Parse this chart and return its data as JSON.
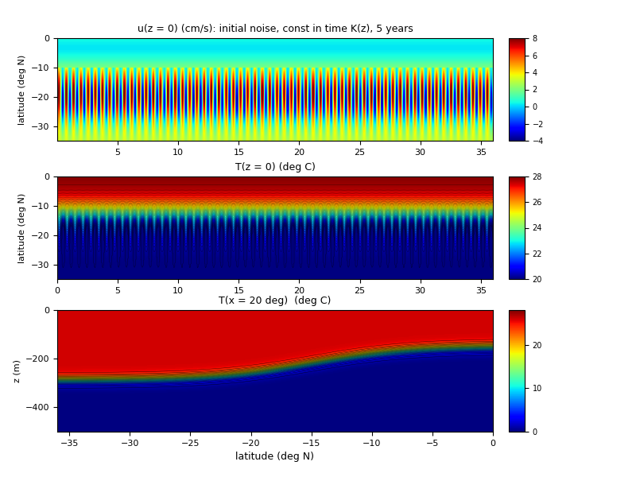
{
  "panel1": {
    "title": "u(z = 0) (cm/s): initial noise, const in time K(z), 5 years",
    "xlabel": "",
    "ylabel": "latitude (deg N)",
    "xlim": [
      0,
      36
    ],
    "ylim": [
      -35,
      0
    ],
    "xticks": [
      5,
      10,
      15,
      20,
      25,
      30,
      35
    ],
    "yticks": [
      0,
      -10,
      -20,
      -30
    ],
    "clim": [
      -4,
      8
    ],
    "cticks": [
      -4,
      -2,
      0,
      2,
      4,
      6,
      8
    ]
  },
  "panel2": {
    "title": "T(z = 0) (deg C)",
    "xlabel": "",
    "ylabel": "latitude (deg N)",
    "xlim": [
      0,
      36
    ],
    "ylim": [
      -35,
      0
    ],
    "xticks": [
      0,
      5,
      10,
      15,
      20,
      25,
      30,
      35
    ],
    "yticks": [
      0,
      -10,
      -20,
      -30
    ],
    "clim": [
      20,
      28
    ],
    "cticks": [
      20,
      22,
      24,
      26,
      28
    ]
  },
  "panel3": {
    "title": "T(x = 20 deg)  (deg C)",
    "xlabel": "latitude (deg N)",
    "ylabel": "z (m)",
    "xlim": [
      -36,
      0
    ],
    "ylim": [
      -500,
      0
    ],
    "xticks": [
      -35,
      -30,
      -25,
      -20,
      -15,
      -10,
      -5,
      0
    ],
    "yticks": [
      0,
      -200,
      -400
    ],
    "clim": [
      0,
      28
    ],
    "cticks": [
      0,
      10,
      20
    ]
  },
  "fig_bg": "#ffffff"
}
